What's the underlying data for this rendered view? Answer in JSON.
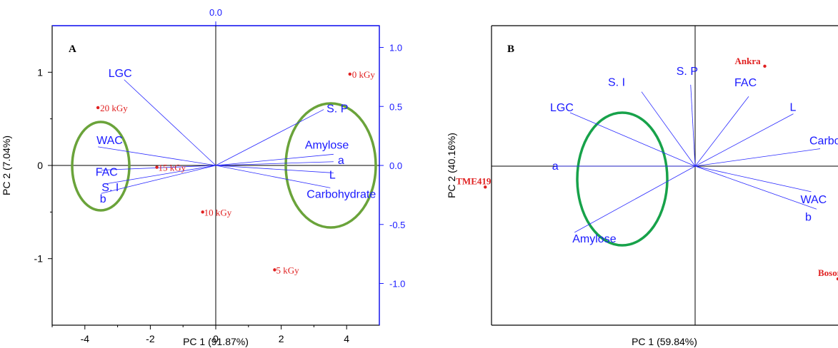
{
  "chart_data": [
    {
      "type": "scatter",
      "panel_label": "A",
      "xlabel": "PC 1 (91.87%)",
      "ylabel": "PC 2 (7.04%)",
      "xlim": [
        -5,
        5
      ],
      "ylim": [
        -1.5,
        1.5
      ],
      "x_ticks": [
        "-4",
        "-2",
        "0",
        "2",
        "4"
      ],
      "y_ticks": [
        "-1",
        "0",
        "1"
      ],
      "secondary_top_tick": "0.0",
      "secondary_right_ticks": [
        "1.0",
        "0.5",
        "0.0",
        "-0.5",
        "-1.0"
      ],
      "observations": [
        {
          "label": "0 kGy",
          "x": 4.1,
          "y": 0.98
        },
        {
          "label": "20 kGy",
          "x": -3.6,
          "y": 0.62
        },
        {
          "label": "15 kGy",
          "x": -1.8,
          "y": -0.02
        },
        {
          "label": "10 kGy",
          "x": -0.4,
          "y": -0.5
        },
        {
          "label": "5 kGy",
          "x": 1.8,
          "y": -1.12
        }
      ],
      "loadings": [
        {
          "label": "LGC",
          "x": -2.8,
          "y": 0.92
        },
        {
          "label": "WAC",
          "x": -3.6,
          "y": 0.2
        },
        {
          "label": "FAC",
          "x": -3.5,
          "y": -0.05
        },
        {
          "label": "S. I",
          "x": -3.4,
          "y": -0.2
        },
        {
          "label": "b",
          "x": -3.5,
          "y": -0.3
        },
        {
          "label": "S. P",
          "x": 3.3,
          "y": 0.6
        },
        {
          "label": "Amylose",
          "x": 3.6,
          "y": 0.12
        },
        {
          "label": "a",
          "x": 3.6,
          "y": 0.04
        },
        {
          "label": "L",
          "x": 3.6,
          "y": -0.08
        },
        {
          "label": "Carbohydrate",
          "x": 3.5,
          "y": -0.24
        }
      ],
      "ellipse_color": "#6aa33a"
    },
    {
      "type": "scatter",
      "panel_label": "B",
      "xlabel": "PC 1 (59.84%)",
      "ylabel": "PC 2 (40.16%)",
      "observations": [
        {
          "label": "Ankra",
          "x": 0.78,
          "y": 0.86
        },
        {
          "label": "TME419",
          "x": -2.35,
          "y": -0.18
        },
        {
          "label": "Bosom nsia",
          "x": 1.6,
          "y": -0.97
        }
      ],
      "loadings": [
        {
          "label": "LGC",
          "x": -1.4,
          "y": 0.46
        },
        {
          "label": "a",
          "x": -1.57,
          "y": 0.0
        },
        {
          "label": "Amylose",
          "x": -1.35,
          "y": -0.57
        },
        {
          "label": "S. I",
          "x": -0.6,
          "y": 0.64
        },
        {
          "label": "S. P",
          "x": -0.05,
          "y": 0.7
        },
        {
          "label": "FAC",
          "x": 0.6,
          "y": 0.6
        },
        {
          "label": "L",
          "x": 1.1,
          "y": 0.45
        },
        {
          "label": "Carbohydrate",
          "x": 1.4,
          "y": 0.15
        },
        {
          "label": "WAC",
          "x": 1.3,
          "y": -0.22
        },
        {
          "label": "b",
          "x": 1.36,
          "y": -0.37
        }
      ],
      "ellipse_color": "#17a24a"
    }
  ]
}
